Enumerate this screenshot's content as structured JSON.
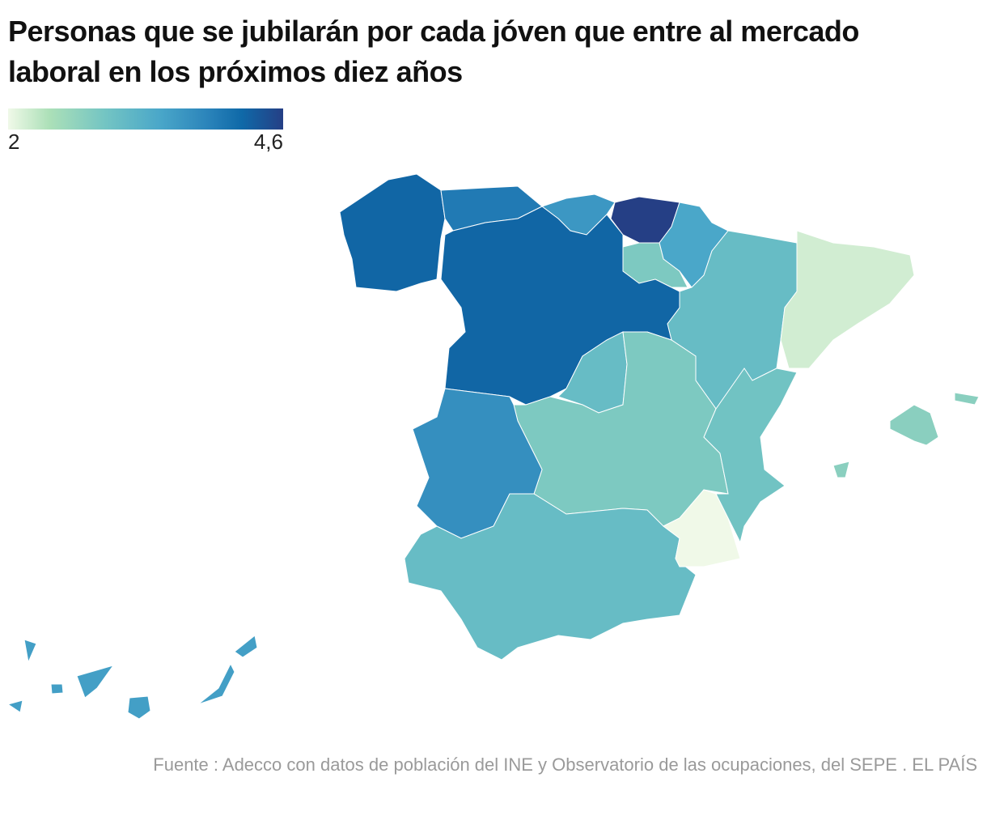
{
  "title": "Personas que se jubilarán por cada jóven que entre al mercado laboral en los próximos diez años",
  "legend": {
    "min_label": "2",
    "max_label": "4,6",
    "min": 2,
    "max": 4.6,
    "colors": [
      "#f0f9e8",
      "#ace0b8",
      "#74c5c3",
      "#4aa7c9",
      "#2c85bb",
      "#0f69a8",
      "#253f85"
    ]
  },
  "map_data": {
    "type": "choropleth",
    "values": {
      "galicia": 4.2,
      "asturias": 3.9,
      "cantabria": 3.5,
      "pais_vasco": 4.6,
      "navarra": 3.3,
      "la_rioja": 2.8,
      "aragon": 3.0,
      "cataluna": 2.2,
      "castilla_y_leon": 4.2,
      "madrid": 3.0,
      "castilla_la_mancha": 2.8,
      "comunidad_valenciana": 2.9,
      "extremadura": 3.6,
      "andalucia": 3.0,
      "murcia": 2.0,
      "baleares": 2.7,
      "canarias": 3.4
    }
  },
  "footer": "Fuente : Adecco con datos de población del INE y Observatorio de las ocupaciones, del SEPE . EL PAÍS"
}
